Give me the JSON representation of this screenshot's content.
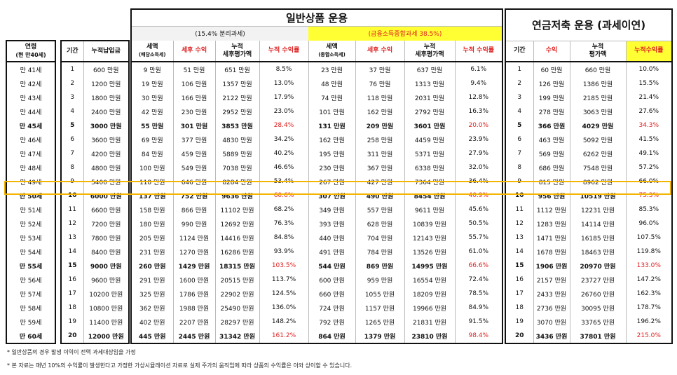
{
  "section_general": "일반상품 운용",
  "section_pension": "연금저축 운용 (과세이연)",
  "sub_separate": "(15.4% 분리과세)",
  "sub_comprehensive": "(금융소득종합과세 38.5%)",
  "colors": {
    "accent_yellow": "#ffff33",
    "red": "#e02020",
    "highlight_border": "#f5b400"
  },
  "headers": {
    "age": "연령",
    "age_sub": "(현 만40세)",
    "period": "기간",
    "cum_pay": "누적납입금",
    "tax_a": "세액",
    "tax_a_sub": "(배당소득세)",
    "after_tax": "세후 수익",
    "cum_eval_a1": "누적",
    "cum_eval_a2": "세후평가액",
    "cum_rate": "누적 수익률",
    "tax_b": "세액",
    "tax_b_sub": "(종합소득세)",
    "p_period": "기간",
    "p_return": "수익",
    "p_eval1": "누적",
    "p_eval2": "평가액",
    "p_rate": "누적수익률"
  },
  "rows": [
    {
      "age": "만 41세",
      "n": "1",
      "pay": "600 만원",
      "a_tax": "9 만원",
      "a_net": "51 만원",
      "a_eval": "651 만원",
      "a_rate": "8.5%",
      "b_tax": "23 만원",
      "b_net": "37 만원",
      "b_eval": "637 만원",
      "b_rate": "6.1%",
      "p_n": "1",
      "p_ret": "60 만원",
      "p_eval": "660 만원",
      "p_rate": "10.0%"
    },
    {
      "age": "만 42세",
      "n": "2",
      "pay": "1200 만원",
      "a_tax": "19 만원",
      "a_net": "106 만원",
      "a_eval": "1357 만원",
      "a_rate": "13.0%",
      "b_tax": "48 만원",
      "b_net": "76 만원",
      "b_eval": "1313 만원",
      "b_rate": "9.4%",
      "p_n": "2",
      "p_ret": "126 만원",
      "p_eval": "1386 만원",
      "p_rate": "15.5%"
    },
    {
      "age": "만 43세",
      "n": "3",
      "pay": "1800 만원",
      "a_tax": "30 만원",
      "a_net": "166 만원",
      "a_eval": "2122 만원",
      "a_rate": "17.9%",
      "b_tax": "74 만원",
      "b_net": "118 만원",
      "b_eval": "2031 만원",
      "b_rate": "12.8%",
      "p_n": "3",
      "p_ret": "199 만원",
      "p_eval": "2185 만원",
      "p_rate": "21.4%"
    },
    {
      "age": "만 44세",
      "n": "4",
      "pay": "2400 만원",
      "a_tax": "42 만원",
      "a_net": "230 만원",
      "a_eval": "2952 만원",
      "a_rate": "23.0%",
      "b_tax": "101 만원",
      "b_net": "162 만원",
      "b_eval": "2792 만원",
      "b_rate": "16.3%",
      "p_n": "4",
      "p_ret": "278 만원",
      "p_eval": "3063 만원",
      "p_rate": "27.6%"
    },
    {
      "age": "만 45세",
      "n": "5",
      "pay": "3000 만원",
      "a_tax": "55 만원",
      "a_net": "301 만원",
      "a_eval": "3853 만원",
      "a_rate": "28.4%",
      "b_tax": "131 만원",
      "b_net": "209 만원",
      "b_eval": "3601 만원",
      "b_rate": "20.0%",
      "p_n": "5",
      "p_ret": "366 만원",
      "p_eval": "4029 만원",
      "p_rate": "34.3%",
      "bold": true
    },
    {
      "age": "만 46세",
      "n": "6",
      "pay": "3600 만원",
      "a_tax": "69 만원",
      "a_net": "377 만원",
      "a_eval": "4830 만원",
      "a_rate": "34.2%",
      "b_tax": "162 만원",
      "b_net": "258 만원",
      "b_eval": "4459 만원",
      "b_rate": "23.9%",
      "p_n": "6",
      "p_ret": "463 만원",
      "p_eval": "5092 만원",
      "p_rate": "41.5%"
    },
    {
      "age": "만 47세",
      "n": "7",
      "pay": "4200 만원",
      "a_tax": "84 만원",
      "a_net": "459 만원",
      "a_eval": "5889 만원",
      "a_rate": "40.2%",
      "b_tax": "195 만원",
      "b_net": "311 만원",
      "b_eval": "5371 만원",
      "b_rate": "27.9%",
      "p_n": "7",
      "p_ret": "569 만원",
      "p_eval": "6262 만원",
      "p_rate": "49.1%"
    },
    {
      "age": "만 48세",
      "n": "8",
      "pay": "4800 만원",
      "a_tax": "100 만원",
      "a_net": "549 만원",
      "a_eval": "7038 만원",
      "a_rate": "46.6%",
      "b_tax": "230 만원",
      "b_net": "367 만원",
      "b_eval": "6338 만원",
      "b_rate": "32.0%",
      "p_n": "8",
      "p_ret": "686 만원",
      "p_eval": "7548 만원",
      "p_rate": "57.2%"
    },
    {
      "age": "만 49세",
      "n": "9",
      "pay": "5400 만원",
      "a_tax": "118 만원",
      "a_net": "646 만원",
      "a_eval": "8284 만원",
      "a_rate": "53.4%",
      "b_tax": "267 만원",
      "b_net": "427 만원",
      "b_eval": "7364 만원",
      "b_rate": "36.4%",
      "p_n": "9",
      "p_ret": "815 만원",
      "p_eval": "8962 만원",
      "p_rate": "66.0%"
    },
    {
      "age": "만 50세",
      "n": "10",
      "pay": "6000 만원",
      "a_tax": "137 만원",
      "a_net": "752 만원",
      "a_eval": "9636 만원",
      "a_rate": "60.6%",
      "b_tax": "307 만원",
      "b_net": "490 만원",
      "b_eval": "8454 만원",
      "b_rate": "40.9%",
      "p_n": "10",
      "p_ret": "956 만원",
      "p_eval": "10519 만원",
      "p_rate": "75.3%",
      "bold": true
    },
    {
      "age": "만 51세",
      "n": "11",
      "pay": "6600 만원",
      "a_tax": "158 만원",
      "a_net": "866 만원",
      "a_eval": "11102 만원",
      "a_rate": "68.2%",
      "b_tax": "349 만원",
      "b_net": "557 만원",
      "b_eval": "9611 만원",
      "b_rate": "45.6%",
      "p_n": "11",
      "p_ret": "1112 만원",
      "p_eval": "12231 만원",
      "p_rate": "85.3%"
    },
    {
      "age": "만 52세",
      "n": "12",
      "pay": "7200 만원",
      "a_tax": "180 만원",
      "a_net": "990 만원",
      "a_eval": "12692 만원",
      "a_rate": "76.3%",
      "b_tax": "393 만원",
      "b_net": "628 만원",
      "b_eval": "10839 만원",
      "b_rate": "50.5%",
      "p_n": "12",
      "p_ret": "1283 만원",
      "p_eval": "14114 만원",
      "p_rate": "96.0%"
    },
    {
      "age": "만 53세",
      "n": "13",
      "pay": "7800 만원",
      "a_tax": "205 만원",
      "a_net": "1124 만원",
      "a_eval": "14416 만원",
      "a_rate": "84.8%",
      "b_tax": "440 만원",
      "b_net": "704 만원",
      "b_eval": "12143 만원",
      "b_rate": "55.7%",
      "p_n": "13",
      "p_ret": "1471 만원",
      "p_eval": "16185 만원",
      "p_rate": "107.5%"
    },
    {
      "age": "만 54세",
      "n": "14",
      "pay": "8400 만원",
      "a_tax": "231 만원",
      "a_net": "1270 만원",
      "a_eval": "16286 만원",
      "a_rate": "93.9%",
      "b_tax": "491 만원",
      "b_net": "784 만원",
      "b_eval": "13526 만원",
      "b_rate": "61.0%",
      "p_n": "14",
      "p_ret": "1678 만원",
      "p_eval": "18463 만원",
      "p_rate": "119.8%"
    },
    {
      "age": "만 55세",
      "n": "15",
      "pay": "9000 만원",
      "a_tax": "260 만원",
      "a_net": "1429 만원",
      "a_eval": "18315 만원",
      "a_rate": "103.5%",
      "b_tax": "544 만원",
      "b_net": "869 만원",
      "b_eval": "14995 만원",
      "b_rate": "66.6%",
      "p_n": "15",
      "p_ret": "1906 만원",
      "p_eval": "20970 만원",
      "p_rate": "133.0%",
      "bold": true
    },
    {
      "age": "만 56세",
      "n": "16",
      "pay": "9600 만원",
      "a_tax": "291 만원",
      "a_net": "1600 만원",
      "a_eval": "20515 만원",
      "a_rate": "113.7%",
      "b_tax": "600 만원",
      "b_net": "959 만원",
      "b_eval": "16554 만원",
      "b_rate": "72.4%",
      "p_n": "16",
      "p_ret": "2157 만원",
      "p_eval": "23727 만원",
      "p_rate": "147.2%"
    },
    {
      "age": "만 57세",
      "n": "17",
      "pay": "10200 만원",
      "a_tax": "325 만원",
      "a_net": "1786 만원",
      "a_eval": "22902 만원",
      "a_rate": "124.5%",
      "b_tax": "660 만원",
      "b_net": "1055 만원",
      "b_eval": "18209 만원",
      "b_rate": "78.5%",
      "p_n": "17",
      "p_ret": "2433 만원",
      "p_eval": "26760 만원",
      "p_rate": "162.3%"
    },
    {
      "age": "만 58세",
      "n": "18",
      "pay": "10800 만원",
      "a_tax": "362 만원",
      "a_net": "1988 만원",
      "a_eval": "25490 만원",
      "a_rate": "136.0%",
      "b_tax": "724 만원",
      "b_net": "1157 만원",
      "b_eval": "19966 만원",
      "b_rate": "84.9%",
      "p_n": "18",
      "p_ret": "2736 만원",
      "p_eval": "30095 만원",
      "p_rate": "178.7%"
    },
    {
      "age": "만 59세",
      "n": "19",
      "pay": "11400 만원",
      "a_tax": "402 만원",
      "a_net": "2207 만원",
      "a_eval": "28297 만원",
      "a_rate": "148.2%",
      "b_tax": "792 만원",
      "b_net": "1265 만원",
      "b_eval": "21831 만원",
      "b_rate": "91.5%",
      "p_n": "19",
      "p_ret": "3070 만원",
      "p_eval": "33765 만원",
      "p_rate": "196.2%"
    },
    {
      "age": "만 60세",
      "n": "20",
      "pay": "12000 만원",
      "a_tax": "445 만원",
      "a_net": "2445 만원",
      "a_eval": "31342 만원",
      "a_rate": "161.2%",
      "b_tax": "864 만원",
      "b_net": "1379 만원",
      "b_eval": "23810 만원",
      "b_rate": "98.4%",
      "p_n": "20",
      "p_ret": "3436 만원",
      "p_eval": "37801 만원",
      "p_rate": "215.0%",
      "bold": true
    }
  ],
  "notes": [
    "* 일반상품의 경우 발생 이익이 전액 과세대상임을 가정",
    "* 본 자료는 매년 10%의 수익률이 발생한다고 가정한 가상시뮬레이션 자료로 실제 주가의 움직임에 따라 상품의 수익률은 이와 상이할 수 있습니다."
  ]
}
